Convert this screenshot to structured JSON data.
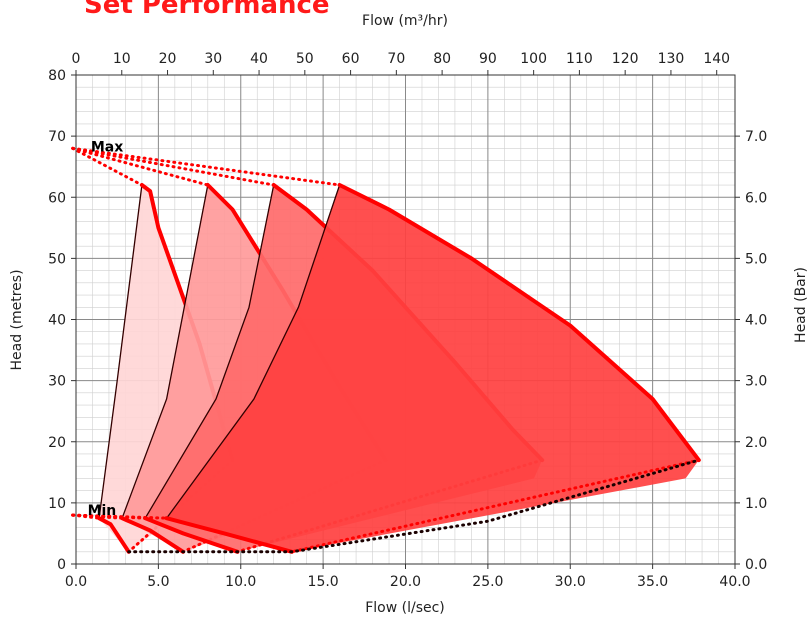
{
  "chart_data": {
    "type": "area",
    "title": "Set Performance",
    "xlabel": "Flow (l/sec)",
    "x2label": "Flow (m³/hr)",
    "ylabel": "Head (metres)",
    "y2label": "Head (Bar)",
    "xlim": [
      0,
      40
    ],
    "ylim": [
      0,
      80
    ],
    "x2lim": [
      0,
      144
    ],
    "y2lim": [
      0,
      8
    ],
    "x_ticks": [
      "0.0",
      "5.0",
      "10.0",
      "15.0",
      "20.0",
      "25.0",
      "30.0",
      "35.0",
      "40.0"
    ],
    "x_tick_values": [
      0,
      5,
      10,
      15,
      20,
      25,
      30,
      35,
      40
    ],
    "y_ticks": [
      "0",
      "10",
      "20",
      "30",
      "40",
      "50",
      "60",
      "70",
      "80"
    ],
    "y_tick_values": [
      0,
      10,
      20,
      30,
      40,
      50,
      60,
      70,
      80
    ],
    "x2_ticks": [
      "0",
      "10",
      "20",
      "30",
      "40",
      "50",
      "60",
      "70",
      "80",
      "90",
      "100",
      "110",
      "120",
      "130",
      "140"
    ],
    "x2_tick_values": [
      0,
      10,
      20,
      30,
      40,
      50,
      60,
      70,
      80,
      90,
      100,
      110,
      120,
      130,
      140
    ],
    "y2_ticks": [
      "0.0",
      "1.0",
      "2.0",
      "3.0",
      "4.0",
      "5.0",
      "6.0",
      "7.0"
    ],
    "y2_tick_values": [
      0,
      1,
      2,
      3,
      4,
      5,
      6,
      7
    ],
    "grid": true,
    "annotations": [
      {
        "text": "Max",
        "x": 0.6,
        "y": 68
      },
      {
        "text": "Min",
        "x": 0.4,
        "y": 8.5
      }
    ],
    "series": [
      {
        "color": "#ffd6d6",
        "polygon": [
          [
            1.4,
            7.5
          ],
          [
            2.5,
            30
          ],
          [
            4.0,
            62
          ],
          [
            4.5,
            61
          ],
          [
            5.0,
            55
          ],
          [
            7.5,
            36
          ],
          [
            9.5,
            17
          ],
          [
            9.2,
            14
          ],
          [
            3.2,
            2
          ],
          [
            1.4,
            7.5
          ]
        ],
        "max_curve": [
          [
            4.0,
            62
          ],
          [
            4.5,
            61
          ],
          [
            5.0,
            55
          ],
          [
            7.5,
            36
          ],
          [
            9.5,
            17
          ]
        ],
        "min_curve": [
          [
            1.4,
            7.5
          ],
          [
            2.1,
            6.5
          ],
          [
            3.2,
            2
          ]
        ]
      },
      {
        "color": "#ff9a9a",
        "polygon": [
          [
            2.8,
            7.5
          ],
          [
            5.5,
            27
          ],
          [
            8.0,
            62
          ],
          [
            9.5,
            58
          ],
          [
            12.5,
            45
          ],
          [
            16.0,
            29
          ],
          [
            18.8,
            17
          ],
          [
            18.5,
            14
          ],
          [
            6.5,
            2
          ],
          [
            2.8,
            7.5
          ]
        ],
        "max_curve": [
          [
            8.0,
            62
          ],
          [
            9.5,
            58
          ],
          [
            12.5,
            45
          ],
          [
            16.0,
            29
          ],
          [
            18.8,
            17
          ]
        ],
        "min_curve": [
          [
            2.8,
            7.5
          ],
          [
            4.5,
            5.5
          ],
          [
            6.5,
            2
          ]
        ]
      },
      {
        "color": "#ff6a6a",
        "polygon": [
          [
            4.2,
            7.5
          ],
          [
            8.5,
            27
          ],
          [
            10.5,
            42
          ],
          [
            12.0,
            62
          ],
          [
            14.0,
            58
          ],
          [
            18.0,
            48
          ],
          [
            23.0,
            33
          ],
          [
            26.5,
            22
          ],
          [
            28.3,
            17
          ],
          [
            27.8,
            14
          ],
          [
            9.8,
            2
          ],
          [
            4.2,
            7.5
          ]
        ],
        "max_curve": [
          [
            12.0,
            62
          ],
          [
            14.0,
            58
          ],
          [
            18.0,
            48
          ],
          [
            23.0,
            33
          ],
          [
            26.5,
            22
          ],
          [
            28.3,
            17
          ]
        ],
        "min_curve": [
          [
            4.2,
            7.5
          ],
          [
            6.5,
            5
          ],
          [
            9.8,
            2
          ]
        ]
      },
      {
        "color": "#ff4040",
        "polygon": [
          [
            5.5,
            7.5
          ],
          [
            10.8,
            27
          ],
          [
            13.5,
            42
          ],
          [
            16.0,
            62
          ],
          [
            19.0,
            58
          ],
          [
            24.0,
            50
          ],
          [
            30.0,
            39
          ],
          [
            35.0,
            27
          ],
          [
            37.8,
            17
          ],
          [
            37.0,
            14
          ],
          [
            13.1,
            2
          ],
          [
            5.5,
            7.5
          ]
        ],
        "max_curve": [
          [
            16.0,
            62
          ],
          [
            19.0,
            58
          ],
          [
            24.0,
            50
          ],
          [
            30.0,
            39
          ],
          [
            35.0,
            27
          ],
          [
            37.8,
            17
          ]
        ],
        "min_curve": [
          [
            5.5,
            7.5
          ],
          [
            9.0,
            5
          ],
          [
            13.1,
            2
          ]
        ]
      }
    ],
    "max_envelope": [
      [
        -0.2,
        68
      ],
      [
        4.0,
        62
      ],
      [
        8.0,
        62
      ],
      [
        12.0,
        62
      ],
      [
        16.0,
        62
      ]
    ],
    "min_envelope": [
      [
        -0.2,
        8
      ],
      [
        1.4,
        7.5
      ],
      [
        2.8,
        7.5
      ],
      [
        4.2,
        7.5
      ],
      [
        5.5,
        7.5
      ]
    ],
    "bottom_envelope": [
      [
        3.2,
        2
      ],
      [
        6.5,
        2
      ],
      [
        9.8,
        2
      ],
      [
        13.1,
        2
      ],
      [
        25.0,
        7
      ],
      [
        37.8,
        17
      ]
    ]
  }
}
